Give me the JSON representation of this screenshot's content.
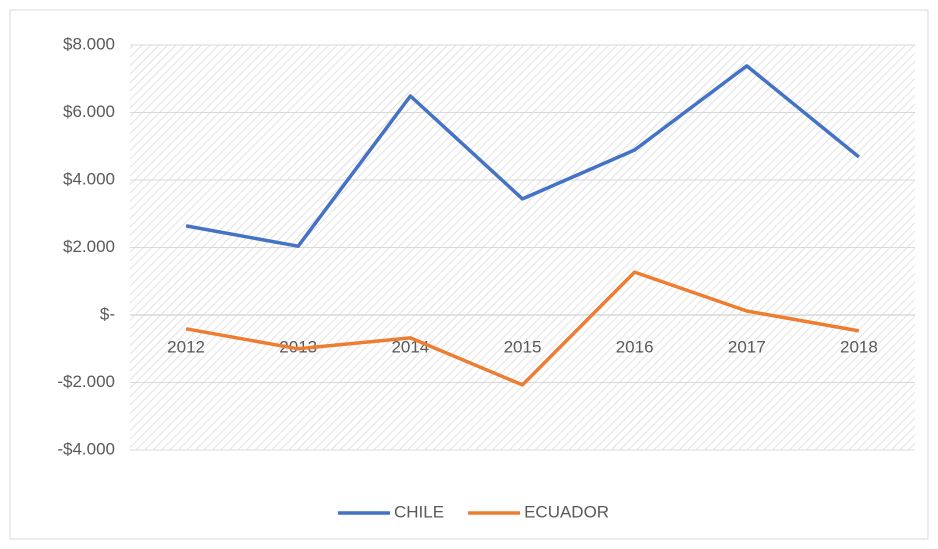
{
  "chart_data": {
    "type": "line",
    "categories": [
      "2012",
      "2013",
      "2014",
      "2015",
      "2016",
      "2017",
      "2018"
    ],
    "series": [
      {
        "name": "CHILE",
        "color": "#4472c4",
        "values": [
          2640,
          2040,
          6490,
          3440,
          4890,
          7380,
          4680
        ]
      },
      {
        "name": "ECUADOR",
        "color": "#ed7d31",
        "values": [
          -410,
          -1000,
          -680,
          -2070,
          1270,
          120,
          -470
        ]
      }
    ],
    "ylim": [
      -4000,
      8000
    ],
    "yticks": [
      {
        "value": -4000,
        "label": "-$4.000"
      },
      {
        "value": -2000,
        "label": "-$2.000"
      },
      {
        "value": 0,
        "label": "$-"
      },
      {
        "value": 2000,
        "label": "$2.000"
      },
      {
        "value": 4000,
        "label": "$4.000"
      },
      {
        "value": 6000,
        "label": "$6.000"
      },
      {
        "value": 8000,
        "label": "$8.000"
      }
    ],
    "grid": true,
    "legend": "bottom"
  }
}
